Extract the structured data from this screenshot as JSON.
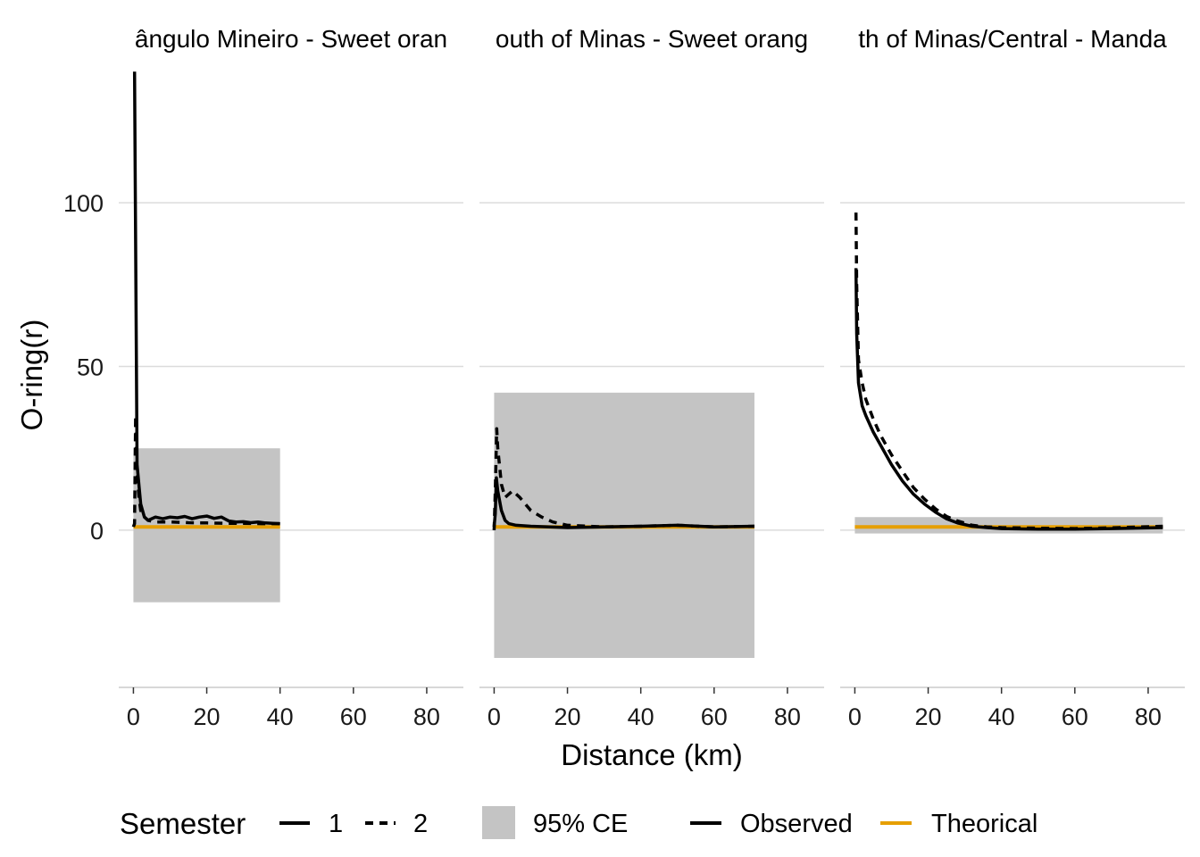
{
  "chart_data": {
    "type": "line",
    "ylabel": "O-ring(r)",
    "xlabel": "Distance (km)",
    "xlim": [
      -4,
      90
    ],
    "ylim": [
      -48,
      142
    ],
    "x_ticks": [
      0,
      20,
      40,
      60,
      80
    ],
    "y_ticks": [
      0,
      50,
      100
    ],
    "y_tick_labels": [
      "0",
      "50",
      "100"
    ],
    "grid": "horizontal major",
    "colors": {
      "observed": "#000000",
      "theoretical": "#E69F00",
      "envelope": "#C4C4C4"
    },
    "panels": [
      {
        "title": "Triângulo Mineiro - Sweet orange",
        "title_visible": "ângulo Mineiro - Sweet oran",
        "envelope": {
          "x": [
            0,
            40
          ],
          "y": [
            -22,
            25
          ]
        },
        "theoretical": {
          "x": [
            0,
            40
          ],
          "y": 1
        },
        "series": [
          {
            "semester": "1",
            "x": [
              0.3,
              0.5,
              1,
              2,
              3,
              4,
              6,
              8,
              10,
              12,
              14,
              16,
              18,
              20,
              22,
              24,
              26,
              28,
              30,
              32,
              34,
              36,
              38,
              40
            ],
            "y": [
              140,
              105,
              20,
              8,
              4,
              3,
              4,
              3.5,
              4,
              3.8,
              4.2,
              3.5,
              4,
              4.3,
              3.6,
              4,
              2.8,
              2.5,
              2.6,
              2.3,
              2.5,
              2.2,
              2.1,
              2
            ]
          },
          {
            "semester": "2",
            "x": [
              0,
              0.3,
              0.6,
              1,
              1.5,
              2,
              3,
              4,
              6,
              10,
              15,
              20,
              25,
              30,
              35,
              40
            ],
            "y": [
              1,
              2,
              35,
              18,
              10,
              6,
              4,
              3,
              2.5,
              2.5,
              2.3,
              2.2,
              2.1,
              2.1,
              2,
              2
            ]
          }
        ]
      },
      {
        "title": "South of Minas - Sweet orange",
        "title_visible": "outh of Minas - Sweet orang",
        "envelope": {
          "x": [
            0,
            71
          ],
          "y": [
            -39,
            42
          ]
        },
        "theoretical": {
          "x": [
            0,
            71
          ],
          "y": 1
        },
        "series": [
          {
            "semester": "1",
            "x": [
              0,
              0.3,
              0.6,
              1,
              2,
              3,
              4,
              6,
              10,
              15,
              20,
              30,
              40,
              50,
              60,
              71
            ],
            "y": [
              1,
              5,
              16,
              12,
              6,
              3,
              2,
              1.5,
              1.2,
              1,
              0.8,
              1,
              1.2,
              1.5,
              1,
              1.2
            ]
          },
          {
            "semester": "2",
            "x": [
              0,
              0.3,
              0.7,
              1,
              2,
              3,
              5,
              7,
              10,
              13,
              16,
              20,
              30,
              40,
              50,
              60,
              71
            ],
            "y": [
              0,
              12,
              31,
              25,
              14,
              10,
              12,
              10,
              6,
              4,
              2.5,
              1.5,
              1,
              1.2,
              1.5,
              1,
              1.2
            ]
          }
        ]
      },
      {
        "title": "South of Minas/Central - Mandarin",
        "title_visible": "th of Minas/Central - Manda",
        "envelope": {
          "x": [
            0,
            84
          ],
          "y": [
            -1,
            4
          ]
        },
        "theoretical": {
          "x": [
            0,
            84
          ],
          "y": 1
        },
        "series": [
          {
            "semester": "1",
            "x": [
              0.3,
              0.5,
              1,
              2,
              3,
              5,
              7,
              10,
              13,
              16,
              19,
              22,
              25,
              28,
              32,
              36,
              40,
              50,
              60,
              70,
              84
            ],
            "y": [
              80,
              60,
              45,
              38,
              35,
              30,
              26,
              20,
              15,
              11,
              8,
              5.5,
              3.5,
              2.2,
              1.2,
              0.8,
              0.5,
              0.3,
              0.3,
              0.5,
              0.8
            ]
          },
          {
            "semester": "2",
            "x": [
              0.3,
              0.5,
              1,
              2,
              3,
              5,
              7,
              10,
              13,
              16,
              19,
              22,
              25,
              28,
              32,
              36,
              40,
              50,
              60,
              70,
              84
            ],
            "y": [
              97,
              75,
              52,
              45,
              40,
              34,
              29,
              23,
              18,
              13,
              9.5,
              6.5,
              4.2,
              2.8,
              1.5,
              1,
              0.8,
              0.6,
              0.5,
              0.7,
              1.2
            ]
          }
        ]
      }
    ],
    "legend": {
      "position": "bottom",
      "semester_title": "Semester",
      "semester_items": [
        "1",
        "2"
      ],
      "envelope_label": "95% CE",
      "observed_label": "Observed",
      "theoretical_label": "Theorical"
    }
  }
}
